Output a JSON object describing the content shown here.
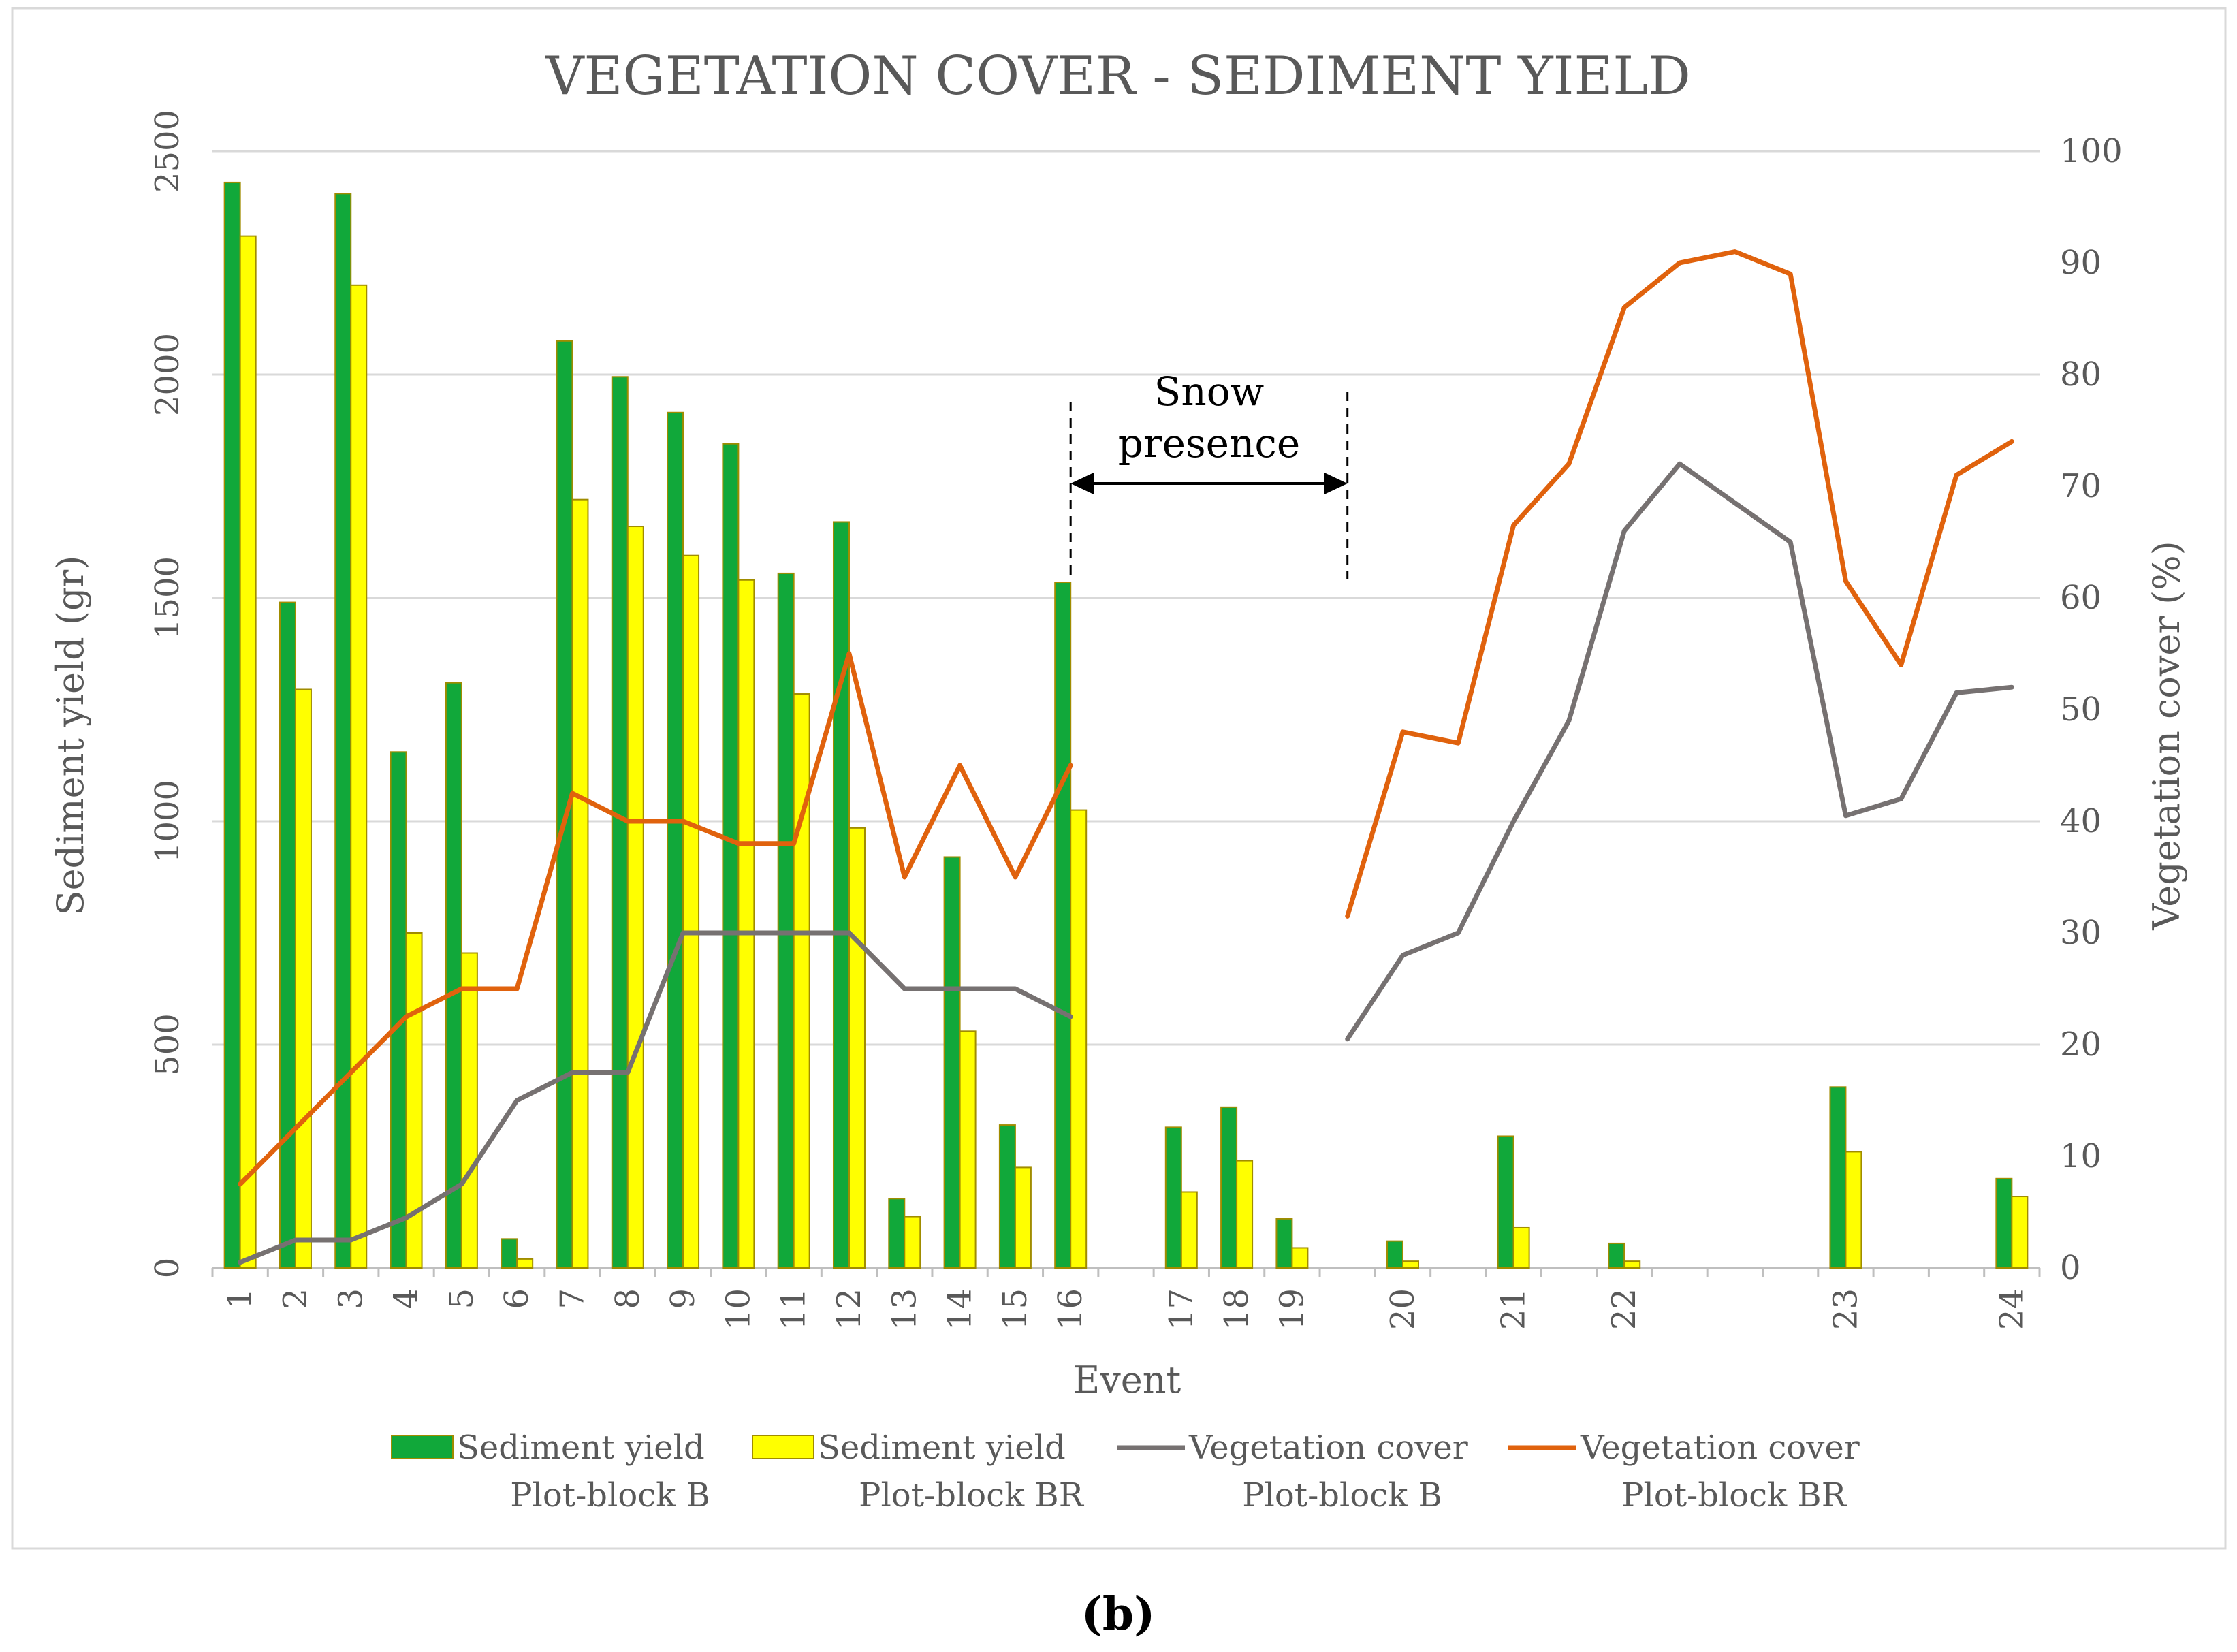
{
  "chart_data": {
    "type": "bar",
    "title": "VEGETATION COVER - SEDIMENT YIELD",
    "xlabel": "Event",
    "ylabel": "Sediment yield (gr)",
    "y2label": "Vegetation cover (%)",
    "ylim": [
      0,
      2500
    ],
    "y2lim": [
      0,
      100
    ],
    "yticks": [
      "0",
      "500",
      "1000",
      "1500",
      "2000",
      "2500"
    ],
    "y2ticks": [
      "0",
      "10",
      "20",
      "30",
      "40",
      "50",
      "60",
      "70",
      "80",
      "90",
      "100"
    ],
    "grid": true,
    "legend_position": "bottom",
    "categories": [
      "1",
      "2",
      "3",
      "4",
      "5",
      "6",
      "7",
      "8",
      "9",
      "10",
      "11",
      "12",
      "13",
      "14",
      "15",
      "16",
      "",
      "17",
      "18",
      "19",
      "",
      "20",
      "",
      "21",
      "",
      "22",
      "",
      "",
      "",
      "23",
      "",
      "",
      "24"
    ],
    "bar_series": [
      {
        "name": "Sediment yield Plot-block B",
        "legend_lines": [
          "Sediment yield",
          "Plot-block B"
        ],
        "color": "#11a83a",
        "values": [
          2430,
          1490,
          2405,
          1155,
          1310,
          65,
          2075,
          1995,
          1915,
          1845,
          1555,
          1670,
          155,
          920,
          320,
          1535,
          null,
          315,
          360,
          110,
          null,
          60,
          null,
          295,
          null,
          55,
          null,
          null,
          null,
          405,
          null,
          null,
          200
        ]
      },
      {
        "name": "Sediment yield Plot-block BR",
        "legend_lines": [
          "Sediment yield",
          "Plot-block BR"
        ],
        "color": "#ffff00",
        "values": [
          2310,
          1295,
          2200,
          750,
          705,
          20,
          1720,
          1660,
          1595,
          1540,
          1285,
          985,
          115,
          530,
          225,
          1025,
          null,
          170,
          240,
          45,
          null,
          15,
          null,
          90,
          null,
          15,
          null,
          null,
          null,
          260,
          null,
          null,
          160
        ]
      }
    ],
    "line_series": [
      {
        "name": "Vegetation cover Plot-block B",
        "legend_lines": [
          "Vegetation cover",
          "Plot-block B"
        ],
        "color": "#767171",
        "values": [
          0.5,
          2.5,
          2.5,
          4.5,
          7.5,
          15,
          17.5,
          17.5,
          30,
          30,
          30,
          30,
          25,
          25,
          25,
          22.5,
          null,
          null,
          null,
          null,
          20.5,
          28,
          30,
          40,
          49,
          66,
          72,
          68.5,
          65,
          40.5,
          42,
          51.5,
          52
        ]
      },
      {
        "name": "Vegetation cover Plot-block BR",
        "legend_lines": [
          "Vegetation cover",
          "Plot-block BR"
        ],
        "color": "#e0620d",
        "values": [
          7.5,
          12.5,
          17.5,
          22.5,
          25,
          25,
          42.5,
          40,
          40,
          38,
          38,
          55,
          35,
          45,
          35,
          45,
          null,
          null,
          null,
          null,
          31.5,
          48,
          47,
          66.5,
          72,
          86,
          90,
          91,
          89,
          61.5,
          54,
          71,
          74
        ]
      }
    ],
    "annotations": [
      {
        "text_lines": [
          "Snow",
          "presence"
        ],
        "from_category": 15,
        "to_category": 20,
        "style": "double-arrow between dashed lines"
      }
    ]
  },
  "panel_label": "(b)"
}
